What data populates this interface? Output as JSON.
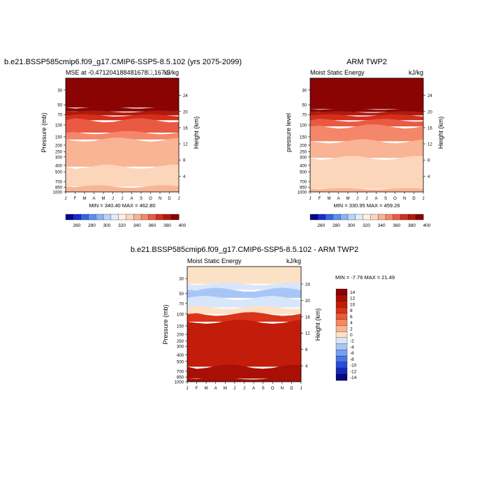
{
  "chart_data": [
    {
      "type": "heatmap",
      "title": "b.e21.BSSP585cmip6.f09_g17.CMIP6-SSP5-8.5.102 (yrs 2075-2099)",
      "subtitle_left": "MSE at -0.471204188481678\u0000,167.5",
      "subtitle_right": "kJ/kg",
      "ylabel": "Pressure (mb)",
      "ylabel_right": "Height (km)",
      "x": [
        "J",
        "F",
        "M",
        "A",
        "M",
        "J",
        "J",
        "A",
        "S",
        "O",
        "N",
        "D",
        "J"
      ],
      "y_ticks": [
        "30",
        "50",
        "70",
        "100",
        "150",
        "200",
        "250",
        "300",
        "400",
        "500",
        "700",
        "850",
        "1000"
      ],
      "y_ticks_right": [
        "24",
        "20",
        "16",
        "12",
        "8",
        "4"
      ],
      "min_max": "MIN = 340.40 MAX = 462.80",
      "colorbar_labels": [
        "260",
        "280",
        "300",
        "320",
        "340",
        "360",
        "380",
        "400"
      ],
      "layers": [
        {
          "p_top": 20,
          "p_bottom": 55,
          "value": 410
        },
        {
          "p_top": 55,
          "p_bottom": 63,
          "value": 400
        },
        {
          "p_top": 63,
          "p_bottom": 72,
          "value": 390
        },
        {
          "p_top": 72,
          "p_bottom": 85,
          "value": 380
        },
        {
          "p_top": 85,
          "p_bottom": 130,
          "value": 370
        },
        {
          "p_top": 130,
          "p_bottom": 165,
          "value": 360
        },
        {
          "p_top": 165,
          "p_bottom": 420,
          "value": 350
        },
        {
          "p_top": 420,
          "p_bottom": 830,
          "value": 340
        },
        {
          "p_top": 830,
          "p_bottom": 1000,
          "value": 350
        }
      ]
    },
    {
      "type": "heatmap",
      "title": "ARM TWP2",
      "subtitle_left": "Moist Static Energy",
      "subtitle_right": "kJ/kg",
      "ylabel": "pressure level",
      "ylabel_right": "Height (km)",
      "x": [
        "J",
        "F",
        "M",
        "A",
        "M",
        "J",
        "J",
        "A",
        "S",
        "O",
        "N",
        "D",
        "J"
      ],
      "y_ticks": [
        "30",
        "50",
        "70",
        "100",
        "150",
        "200",
        "250",
        "300",
        "400",
        "500",
        "700",
        "850",
        "1000"
      ],
      "y_ticks_right": [
        "24",
        "20",
        "16",
        "12",
        "8",
        "4"
      ],
      "min_max": "MIN = 330.95 MAX = 459.26",
      "colorbar_labels": [
        "260",
        "280",
        "300",
        "320",
        "340",
        "360",
        "380",
        "400"
      ],
      "layers": [
        {
          "p_top": 20,
          "p_bottom": 58,
          "value": 410
        },
        {
          "p_top": 58,
          "p_bottom": 64,
          "value": 400
        },
        {
          "p_top": 64,
          "p_bottom": 72,
          "value": 390
        },
        {
          "p_top": 72,
          "p_bottom": 85,
          "value": 380
        },
        {
          "p_top": 85,
          "p_bottom": 105,
          "value": 370
        },
        {
          "p_top": 105,
          "p_bottom": 175,
          "value": 360
        },
        {
          "p_top": 175,
          "p_bottom": 310,
          "value": 350
        },
        {
          "p_top": 310,
          "p_bottom": 900,
          "value": 340
        },
        {
          "p_top": 900,
          "p_bottom": 1000,
          "value": 350
        }
      ]
    },
    {
      "type": "heatmap",
      "title": "b.e21.BSSP585cmip6.f09_g17.CMIP6-SSP5-8.5.102 - ARM TWP2",
      "subtitle_left": "Moist Static Energy",
      "subtitle_right": "kJ/kg",
      "ylabel": "Pressure (mb)",
      "ylabel_right": "Height (km)",
      "x": [
        "J",
        "F",
        "M",
        "A",
        "M",
        "J",
        "J",
        "A",
        "S",
        "O",
        "N",
        "D",
        "J"
      ],
      "y_ticks": [
        "30",
        "50",
        "70",
        "100",
        "150",
        "200",
        "250",
        "300",
        "400",
        "500",
        "700",
        "850",
        "1000"
      ],
      "y_ticks_right": [
        "24",
        "20",
        "16",
        "12",
        "8",
        "4"
      ],
      "min_max": "MIN = -7.76 MAX = 21.49",
      "colorbar_labels": [
        "14",
        "12",
        "10",
        "8",
        "6",
        "4",
        "2",
        "0",
        "-2",
        "-4",
        "-6",
        "-8",
        "-10",
        "-12",
        "-14"
      ],
      "layers": [
        {
          "p_top": 20,
          "p_bottom": 36,
          "value": 1
        },
        {
          "p_top": 36,
          "p_bottom": 44,
          "value": -2
        },
        {
          "p_top": 44,
          "p_bottom": 58,
          "value": -4
        },
        {
          "p_top": 58,
          "p_bottom": 80,
          "value": -1
        },
        {
          "p_top": 80,
          "p_bottom": 100,
          "value": 1
        },
        {
          "p_top": 100,
          "p_bottom": 130,
          "value": 9
        },
        {
          "p_top": 130,
          "p_bottom": 600,
          "value": 11
        },
        {
          "p_top": 600,
          "p_bottom": 900,
          "value": 12
        },
        {
          "p_top": 900,
          "p_bottom": 1000,
          "value": 13
        }
      ]
    }
  ],
  "colors": {
    "abs_scale": [
      "#08068c",
      "#1a2cd0",
      "#3366e0",
      "#5b8ff0",
      "#8bb3f5",
      "#b9d4fa",
      "#e1ecfb",
      "#fdf0e1",
      "#fcd6bb",
      "#f9b495",
      "#f4876a",
      "#ea5a43",
      "#d42e1c",
      "#b01a0e",
      "#8b0404"
    ],
    "diff_scale": [
      "#8b0000",
      "#a80f05",
      "#c11d0a",
      "#d9341a",
      "#ec5a38",
      "#f6875f",
      "#fab48e",
      "#fde1c6",
      "#d7e6fb",
      "#a8c6f5",
      "#789ff0",
      "#4a74e8",
      "#2a4ad8",
      "#152ab8",
      "#050a80"
    ]
  }
}
